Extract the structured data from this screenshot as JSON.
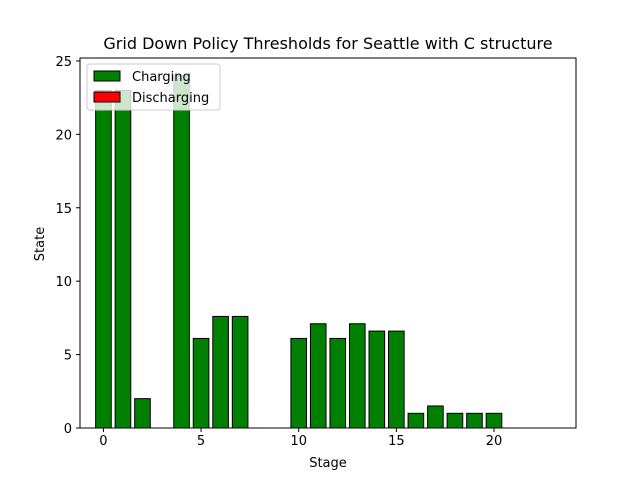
{
  "chart_data": {
    "type": "bar",
    "title": "Grid Down Policy Thresholds for Seattle with C structure",
    "xlabel": "Stage",
    "ylabel": "State",
    "xlim": [
      -1.2,
      24.2
    ],
    "ylim": [
      0,
      25.2
    ],
    "xticks": [
      0,
      5,
      10,
      15,
      20
    ],
    "yticks": [
      0,
      5,
      10,
      15,
      20,
      25
    ],
    "legend": {
      "placement": "top-left"
    },
    "series": [
      {
        "name": "Charging",
        "color": "#008000",
        "x": [
          0,
          1,
          2,
          3,
          4,
          5,
          6,
          7,
          8,
          9,
          10,
          11,
          12,
          13,
          14,
          15,
          16,
          17,
          18,
          19,
          20,
          21,
          22,
          23
        ],
        "values": [
          23.0,
          23.0,
          2.0,
          0,
          24.0,
          6.1,
          7.6,
          7.6,
          0,
          0,
          6.1,
          7.1,
          6.1,
          7.1,
          6.6,
          6.6,
          1.0,
          1.5,
          1.0,
          1.0,
          1.0,
          0,
          0,
          0
        ]
      },
      {
        "name": "Discharging",
        "color": "#ff0000",
        "x": [
          0,
          1,
          2,
          3,
          4,
          5,
          6,
          7,
          8,
          9,
          10,
          11,
          12,
          13,
          14,
          15,
          16,
          17,
          18,
          19,
          20,
          21,
          22,
          23
        ],
        "values": [
          0,
          0,
          0,
          0,
          0,
          0,
          0,
          0,
          0,
          0,
          0,
          0,
          0,
          0,
          0,
          0,
          0,
          0,
          0,
          0,
          0,
          0,
          0,
          0
        ]
      }
    ]
  }
}
